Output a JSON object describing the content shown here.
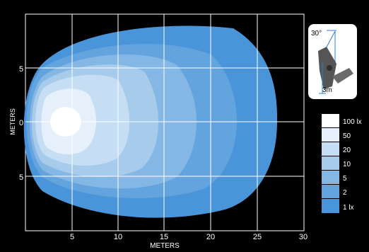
{
  "plot": {
    "x_axis": {
      "label": "METERS",
      "ticks": [
        "5",
        "10",
        "15",
        "20",
        "25",
        "30"
      ]
    },
    "y_axis": {
      "label": "METERS",
      "ticks": [
        "5",
        "0",
        "5"
      ]
    }
  },
  "mount_diagram": {
    "angle_label": "30°",
    "height_label": "3m"
  },
  "legend": {
    "items": [
      {
        "label": "100 lx",
        "color": "#ffffff"
      },
      {
        "label": "50",
        "color": "#e6f0fa"
      },
      {
        "label": "20",
        "color": "#c6def3"
      },
      {
        "label": "10",
        "color": "#a6cbeb"
      },
      {
        "label": "5",
        "color": "#84b7e4"
      },
      {
        "label": "2",
        "color": "#64a4de"
      },
      {
        "label": "1 lx",
        "color": "#4a95da"
      }
    ]
  }
}
